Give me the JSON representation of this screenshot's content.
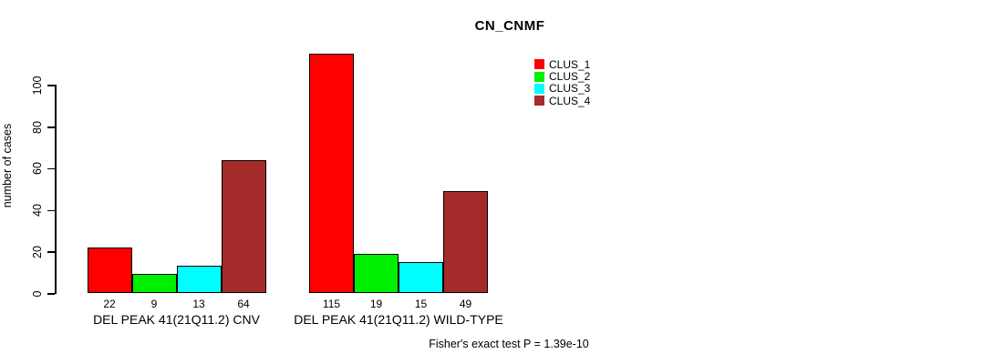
{
  "chart_data": {
    "type": "bar",
    "title": "CN_CNMF",
    "ylabel": "number of cases",
    "xlabel": "",
    "yticks": [
      0,
      20,
      40,
      60,
      80,
      100
    ],
    "ylim": [
      0,
      117
    ],
    "grid": false,
    "legend_position": "top-right",
    "categories": [
      "DEL PEAK 41(21Q11.2) CNV",
      "DEL PEAK 41(21Q11.2) WILD-TYPE"
    ],
    "series": [
      {
        "name": "CLUS_1",
        "color": "#FF0000",
        "values": [
          22,
          115
        ]
      },
      {
        "name": "CLUS_2",
        "color": "#00EE00",
        "values": [
          9,
          19
        ]
      },
      {
        "name": "CLUS_3",
        "color": "#00FFFF",
        "values": [
          13,
          15
        ]
      },
      {
        "name": "CLUS_4",
        "color": "#A52A2A",
        "values": [
          64,
          49
        ]
      }
    ],
    "bar_value_labels": [
      [
        22,
        9,
        13,
        64
      ],
      [
        115,
        19,
        15,
        49
      ]
    ],
    "annotation": "Fisher's exact test P = 1.39e-10",
    "axis_color": "#000000",
    "background_color": "#FFFFFF"
  }
}
